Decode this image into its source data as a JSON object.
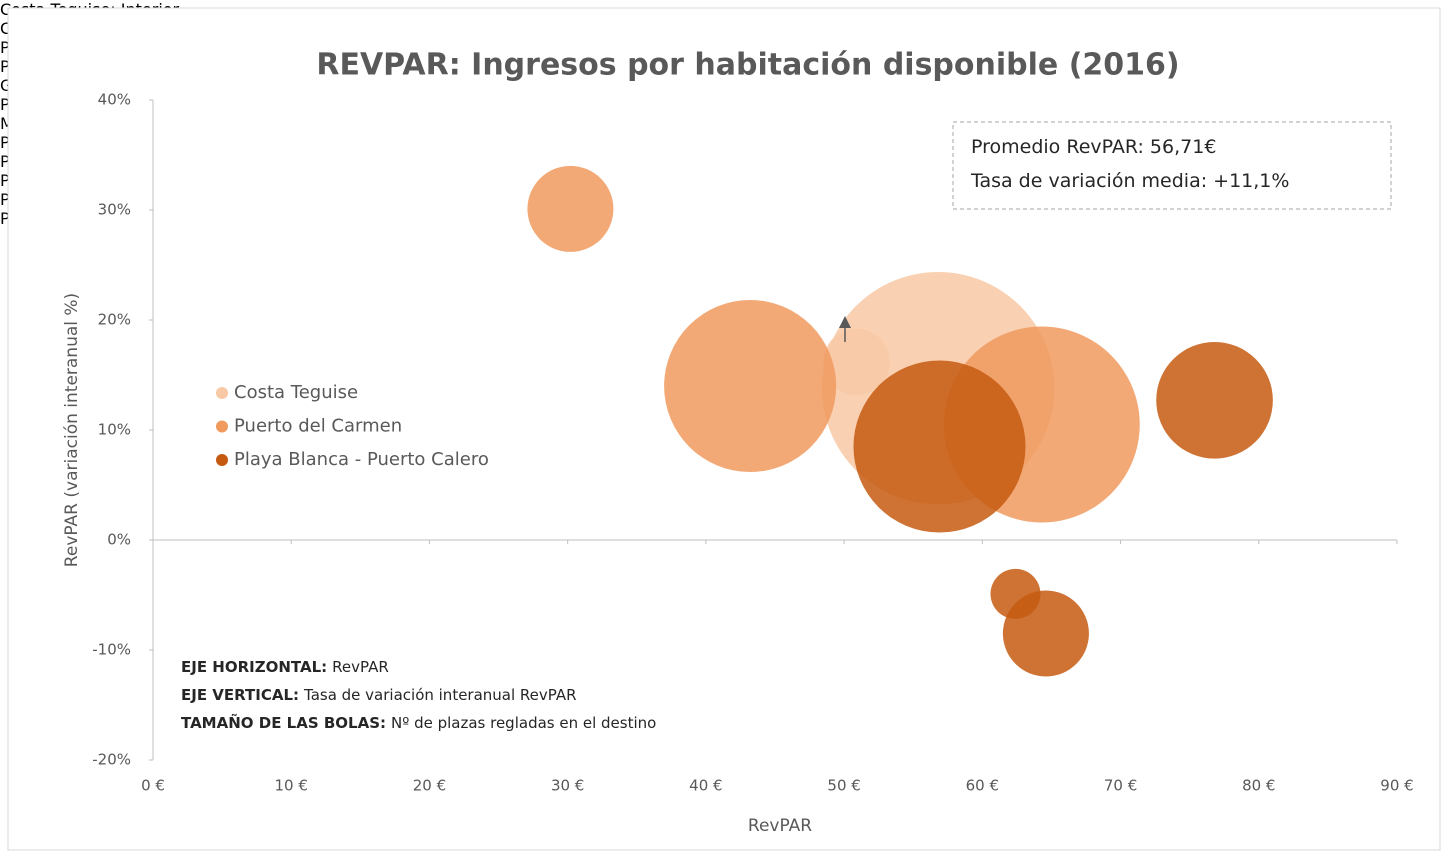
{
  "chart_data": {
    "type": "bubble",
    "title": "REVPAR: Ingresos por habitación disponible (2016)",
    "x_label": "RevPAR",
    "y_label": "RevPAR (variación interanual %)",
    "xlim": [
      0,
      90
    ],
    "xticks": [
      {
        "value": 0,
        "label": "0 €"
      },
      {
        "value": 10,
        "label": "10 €"
      },
      {
        "value": 20,
        "label": "20 €"
      },
      {
        "value": 30,
        "label": "30 €"
      },
      {
        "value": 40,
        "label": "40 €"
      },
      {
        "value": 50,
        "label": "50 €"
      },
      {
        "value": 60,
        "label": "60 €"
      },
      {
        "value": 70,
        "label": "70 €"
      },
      {
        "value": 80,
        "label": "80 €"
      },
      {
        "value": 90,
        "label": "90 €"
      }
    ],
    "ylim": [
      -20,
      40
    ],
    "yticks": [
      {
        "value": -20,
        "label": "-20%"
      },
      {
        "value": -10,
        "label": "-10%"
      },
      {
        "value": 0,
        "label": "0%"
      },
      {
        "value": 10,
        "label": "10%"
      },
      {
        "value": 20,
        "label": "20%"
      },
      {
        "value": 30,
        "label": "30%"
      },
      {
        "value": 40,
        "label": "40%"
      }
    ],
    "legend_position": "left",
    "series": [
      {
        "name": "Costa Teguise",
        "color": "#f8c9a4",
        "labels": [
          "Costa Teguise: Interior",
          "Costa Teguise: Litoral"
        ],
        "x": [
          50.9,
          56.8
        ],
        "values": [
          16.2,
          13.8
        ],
        "sizes": [
          1100,
          13500
        ]
      },
      {
        "name": "Puerto del Carmen",
        "color": "#f09a5e",
        "labels": [
          "Puerto del Carmen: Casco",
          "Puerto del Carmen: Playa Grande",
          "Puerto del Carmen: Matagorda Los Pocillos"
        ],
        "x": [
          30.2,
          43.2,
          64.3
        ],
        "values": [
          30.1,
          14.0,
          10.5
        ],
        "sizes": [
          1850,
          7400,
          9600
        ]
      },
      {
        "name": "Playa Blanca - Puerto Calero",
        "color": "#c55a11",
        "labels": [
          "Playa Blanca: Montaña Roja",
          "Playa Blanca: Playa Blanca",
          "Puerto Calero",
          "Playa Blanca: Rubicón Papagayo"
        ],
        "x": [
          56.9,
          76.8,
          62.4,
          64.6
        ],
        "values": [
          8.5,
          12.7,
          -4.9,
          -8.5
        ],
        "sizes": [
          7400,
          3400,
          625,
          1850
        ]
      }
    ],
    "annotations": [
      "Promedio RevPAR: 56,71€",
      "Tasa de variación media: +11,1%"
    ],
    "notes": [
      {
        "bold": "EJE HORIZONTAL:",
        "text": "RevPAR"
      },
      {
        "bold": "EJE VERTICAL:",
        "text": "Tasa de variación interanual RevPAR"
      },
      {
        "bold": "TAMAÑO DE LAS BOLAS:",
        "text": "Nº de plazas regladas en el destino"
      }
    ]
  }
}
